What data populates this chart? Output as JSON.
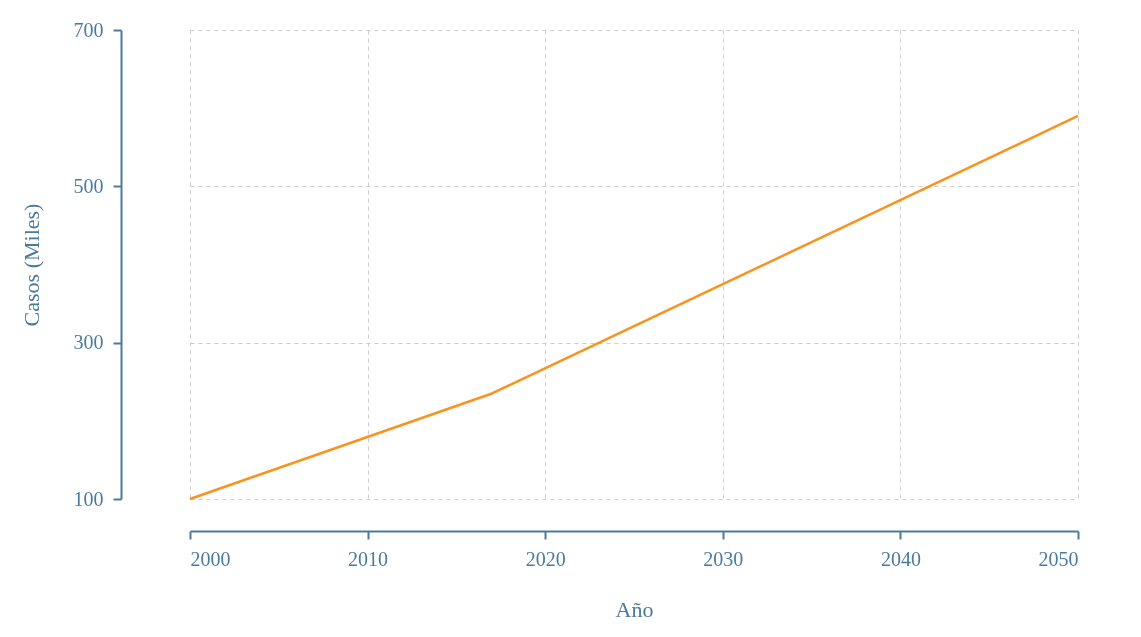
{
  "chart_data": {
    "type": "line",
    "xlabel": "Año",
    "ylabel": "Casos (Miles)",
    "x": [
      2000,
      2017,
      2050
    ],
    "series": [
      {
        "color": "#f7931e",
        "values": [
          100,
          235,
          590
        ]
      }
    ],
    "xlim": [
      2000,
      2050
    ],
    "xticks": [
      2000,
      2010,
      2020,
      2030,
      2040,
      2050
    ],
    "ylim": [
      100,
      700
    ],
    "yticks": [
      100,
      300,
      500,
      700
    ],
    "grid": true,
    "legend": false,
    "marker": "none",
    "line_style": "solid"
  }
}
